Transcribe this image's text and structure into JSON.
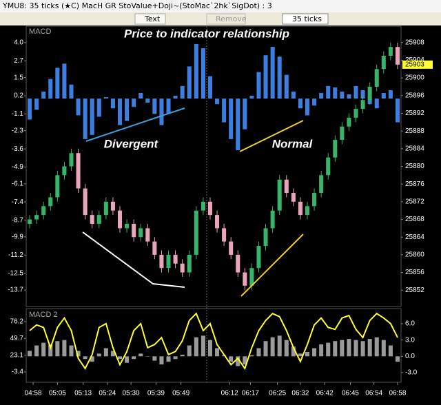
{
  "window": {
    "title": "YMU8: 35 ticks (★C) MacH GR StoValue+Doji~(StoMac`2hk`SigDot) : 3",
    "toolbar": {
      "text_button": "Text",
      "remove_button": "Remove",
      "interval": "35 ticks"
    }
  },
  "chart_data": [
    {
      "type": "candlestick",
      "label": "MACD",
      "title": "Price to indicator relationship",
      "annotations": [
        "Divergent",
        "Normal"
      ],
      "xlim": [
        0,
        54
      ],
      "ylim": [
        -14.88,
        5.18
      ],
      "yticks": [
        {
          "value": 4,
          "label": "4.0"
        },
        2.7,
        1.5,
        0.2,
        -1.1,
        -2.3,
        -3.6,
        -4.9,
        -6.1,
        -7.4,
        -8.7,
        -9.9,
        -11.2,
        -12.5,
        -13.7
      ],
      "y2lim": [
        25848.3,
        25911.7
      ],
      "y2ticks": [
        25908,
        25904,
        25900,
        25896,
        25892,
        25888,
        25884,
        25880,
        25876,
        25872,
        25868,
        25864,
        25860,
        25856,
        25852
      ],
      "series": [
        {
          "type": "bar",
          "color": "#3d7fe0",
          "values": [
            -1.5,
            -0.8,
            0.5,
            1.4,
            2.2,
            2.5,
            1.0,
            -1.2,
            -2.9,
            -2.6,
            -1.3,
            0.1,
            -0.7,
            -1.9,
            -1.6,
            -0.6,
            0.4,
            -0.3,
            -1.1,
            -1.9,
            -1.1,
            0.2,
            0.9,
            2.3,
            3.9,
            3.6,
            1.6,
            -0.4,
            -1.7,
            -2.9,
            -3.7,
            -2.2,
            0.2,
            1.9,
            3.1,
            3.7,
            3.0,
            1.7,
            0.5,
            -0.7,
            -1.2,
            -0.5,
            0.4,
            0.9,
            0.8,
            0.5,
            0.3,
            0.9,
            0.6,
            -0.4,
            -0.7,
            0.4,
            0.6,
            -1.7
          ]
        }
      ],
      "open": [
        25867,
        25868,
        25869,
        25871,
        25873,
        25878,
        25880,
        25883,
        25875,
        25869,
        25867,
        25869,
        25872,
        25870,
        25866,
        25867,
        25864,
        25866,
        25863,
        25860,
        25857,
        25860,
        25858,
        25856,
        25860,
        25870,
        25872,
        25869,
        25866,
        25863,
        25860,
        25856,
        25853,
        25857,
        25862,
        25866,
        25870,
        25877,
        25874,
        25872,
        25869,
        25871,
        25874,
        25878,
        25882,
        25886,
        25889,
        25891,
        25893,
        25895,
        25898,
        25902,
        25905,
        25907
      ],
      "high": [
        25869,
        25870,
        25872,
        25874,
        25879,
        25881,
        25884,
        25884,
        25876,
        25870,
        25870,
        25873,
        25873,
        25871,
        25868,
        25868,
        25867,
        25867,
        25864,
        25861,
        25861,
        25861,
        25859,
        25861,
        25871,
        25873,
        25873,
        25870,
        25867,
        25864,
        25861,
        25857,
        25858,
        25863,
        25867,
        25871,
        25878,
        25878,
        25875,
        25873,
        25872,
        25875,
        25879,
        25883,
        25887,
        25890,
        25892,
        25894,
        25896,
        25899,
        25903,
        25906,
        25908,
        25908
      ],
      "low": [
        25866,
        25867,
        25868,
        25870,
        25872,
        25877,
        25879,
        25874,
        25868,
        25866,
        25866,
        25868,
        25869,
        25865,
        25865,
        25863,
        25863,
        25862,
        25859,
        25856,
        25856,
        25857,
        25855,
        25855,
        25859,
        25869,
        25868,
        25865,
        25862,
        25859,
        25855,
        25852,
        25852,
        25856,
        25861,
        25865,
        25869,
        25873,
        25871,
        25868,
        25868,
        25870,
        25873,
        25877,
        25881,
        25885,
        25888,
        25890,
        25892,
        25894,
        25897,
        25901,
        25904,
        25902
      ],
      "close": [
        25868,
        25869,
        25871,
        25873,
        25878,
        25880,
        25883,
        25875,
        25869,
        25867,
        25869,
        25872,
        25870,
        25866,
        25867,
        25864,
        25866,
        25863,
        25860,
        25857,
        25860,
        25858,
        25856,
        25860,
        25870,
        25872,
        25869,
        25866,
        25863,
        25860,
        25856,
        25853,
        25857,
        25862,
        25866,
        25870,
        25877,
        25874,
        25872,
        25869,
        25871,
        25874,
        25878,
        25882,
        25886,
        25889,
        25891,
        25893,
        25895,
        25898,
        25902,
        25905,
        25907,
        25903
      ],
      "up_color": "#39b26a",
      "down_color": "#e9a6b8",
      "last_price": 25903
    },
    {
      "type": "line",
      "label": "MACD 2",
      "xlim": [
        0,
        54
      ],
      "xticks": [
        {
          "value": 1,
          "label": "04:58"
        },
        {
          "value": 4.5,
          "label": "05:05"
        },
        {
          "value": 8.2,
          "label": "05:13"
        },
        {
          "value": 11.7,
          "label": "05:24"
        },
        {
          "value": 15.1,
          "label": "05:30"
        },
        {
          "value": 18.7,
          "label": "05:39"
        },
        {
          "value": 22.3,
          "label": "05:49"
        },
        {
          "value": 29.3,
          "label": "06:12"
        },
        {
          "value": 32.3,
          "label": "06:17"
        },
        {
          "value": 36.2,
          "label": "06:25"
        },
        {
          "value": 39.5,
          "label": "06:32"
        },
        {
          "value": 43,
          "label": "06:42"
        },
        {
          "value": 46.7,
          "label": "06:45"
        },
        {
          "value": 50.1,
          "label": "06:54"
        },
        {
          "value": 53.5,
          "label": "06:58"
        }
      ],
      "ylim": [
        -19.8,
        96.9
      ],
      "yticks": [
        76.2,
        49.7,
        23.1,
        -3.4
      ],
      "y2lim": [
        -4.78,
        8.79
      ],
      "y2ticks": [
        {
          "value": 6,
          "label": "6.0"
        },
        {
          "value": 3,
          "label": "3.0"
        },
        {
          "value": 0,
          "label": "0.0"
        },
        {
          "value": -3,
          "label": "-3.0"
        }
      ],
      "series": [
        {
          "type": "bar",
          "axis": "y2",
          "color": "#9a9a9a",
          "values": [
            1.0,
            2.0,
            2.5,
            2.2,
            2.8,
            3.0,
            2.0,
            1.0,
            -0.5,
            -1.0,
            0.5,
            1.5,
            1.0,
            -0.5,
            -1.2,
            -0.5,
            0.5,
            0,
            -0.8,
            -1.5,
            -1.0,
            -0.5,
            0.3,
            2.0,
            3.5,
            3.8,
            3.0,
            1.5,
            0.2,
            -1.0,
            -1.8,
            -1.5,
            0.2,
            1.5,
            2.8,
            3.5,
            3.8,
            3.0,
            1.8,
            0.5,
            0.8,
            1.5,
            2.2,
            2.5,
            2.8,
            3.0,
            3.2,
            3.0,
            2.8,
            3.2,
            3.5,
            3.0,
            2.0,
            -1.0
          ]
        },
        {
          "type": "line",
          "color": "#ffff33",
          "values": [
            62,
            71,
            67,
            35,
            67,
            82,
            62,
            18,
            2,
            24,
            67,
            73,
            35,
            8,
            29,
            62,
            73,
            35,
            40,
            51,
            24,
            29,
            46,
            78,
            89,
            62,
            73,
            40,
            24,
            8,
            18,
            2,
            35,
            62,
            78,
            89,
            84,
            62,
            35,
            13,
            40,
            71,
            82,
            67,
            64,
            82,
            86,
            64,
            51,
            78,
            89,
            82,
            73,
            51
          ]
        }
      ]
    }
  ]
}
